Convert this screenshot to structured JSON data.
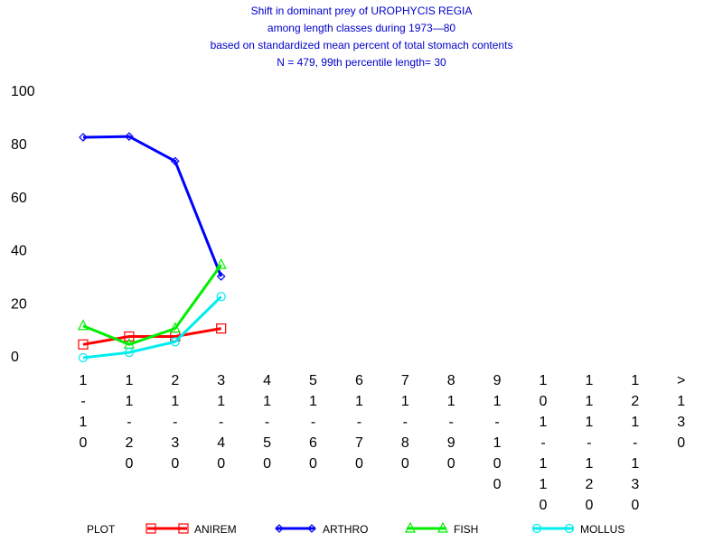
{
  "chart_data": {
    "type": "line",
    "title": [
      "Shift in dominant prey of UROPHYCIS REGIA",
      "among length classes during 1973—80",
      "based on standardized mean percent of  total stomach contents",
      "N =  479, 99th percentile  length= 30"
    ],
    "legend_title": "PLOT",
    "categories": [
      "1-10",
      "11-20",
      "21-30",
      "31-40",
      "41-50",
      "51-60",
      "61-70",
      "71-80",
      "81-90",
      "91-100",
      "101-110",
      "111-120",
      "121-130",
      ">130"
    ],
    "series": [
      {
        "name": "ANIREM",
        "color": "#ff0000",
        "marker": "square",
        "values": [
          5,
          8,
          8,
          11,
          null,
          null,
          null,
          null,
          null,
          null,
          null,
          null,
          null,
          null
        ]
      },
      {
        "name": "ARTHRO",
        "color": "#0000ff",
        "marker": "diamond",
        "values": [
          83,
          83.3,
          74,
          30.6,
          null,
          null,
          null,
          null,
          null,
          null,
          null,
          null,
          null,
          null
        ]
      },
      {
        "name": "FISH",
        "color": "#00ee00",
        "marker": "triangle",
        "values": [
          12,
          5,
          11,
          35,
          null,
          null,
          null,
          null,
          null,
          null,
          null,
          null,
          null,
          null
        ]
      },
      {
        "name": "MOLLUS",
        "color": "#00eeee",
        "marker": "circle",
        "values": [
          0,
          2,
          6,
          23,
          null,
          null,
          null,
          null,
          null,
          null,
          null,
          null,
          null,
          null
        ]
      }
    ],
    "ylim": [
      0,
      100
    ],
    "yticks": [
      0,
      20,
      40,
      60,
      80,
      100
    ],
    "grid": false
  }
}
